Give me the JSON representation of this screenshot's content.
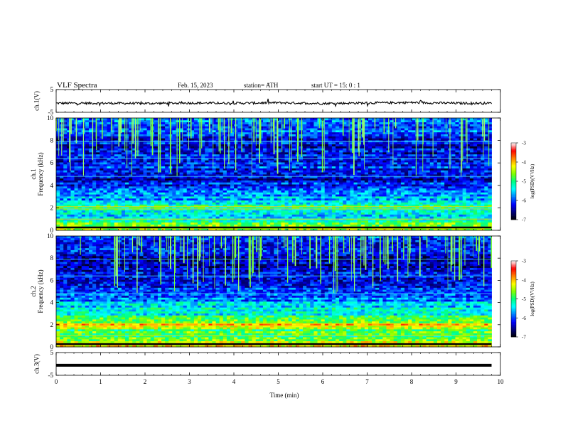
{
  "header": {
    "title": "VLF  Spectra",
    "date": "Feb. 15, 2023",
    "station": "station= ATH",
    "start": "start  UT  =    15: 0   : 1"
  },
  "colorbar": {
    "label": "log(PSD)(V²/Hz)",
    "ticks": [
      "-3",
      "-4",
      "-5",
      "-6",
      "-7"
    ],
    "colors": [
      "#000000",
      "#00007a",
      "#0000ff",
      "#0080ff",
      "#00ffff",
      "#00ff80",
      "#80ff00",
      "#ffff00",
      "#ff8000",
      "#ff0000",
      "#ffffff"
    ]
  },
  "chart_data": [
    {
      "type": "line",
      "ylabel": "ch.1(V)",
      "ylim": [
        -5,
        5
      ],
      "yticks": [
        "5",
        "-5"
      ],
      "xlim": [
        0,
        10
      ],
      "series": [
        {
          "x": [
            0,
            1,
            2,
            3,
            4,
            5,
            6,
            7,
            8,
            9,
            9.8
          ],
          "values": [
            -1,
            -1,
            -1.1,
            -0.9,
            -1,
            -0.8,
            -1.1,
            -0.9,
            -0.7,
            -1,
            -1
          ]
        }
      ]
    },
    {
      "type": "heatmap",
      "ylabel": "ch.1\nFrequency (kHz)",
      "ylim": [
        0,
        10
      ],
      "yticks": [
        "10",
        "8",
        "6",
        "4",
        "2",
        "0"
      ],
      "xlim": [
        0,
        10
      ],
      "data_end_min": 9.8,
      "zlim": [
        -7,
        -3
      ],
      "frequency_profile_khz": [
        0,
        0.5,
        1,
        1.5,
        2,
        2.5,
        3,
        3.5,
        4,
        4.5,
        5,
        6,
        7,
        8,
        9,
        10
      ],
      "log_psd_profile": [
        -4.2,
        -4.6,
        -5.3,
        -5.4,
        -5.0,
        -5.5,
        -5.6,
        -5.8,
        -6.0,
        -6.5,
        -6.2,
        -6.1,
        -6.3,
        -6.2,
        -6.0,
        -5.8
      ]
    },
    {
      "type": "heatmap",
      "ylabel": "ch.2\nFrequency (kHz)",
      "ylim": [
        0,
        10
      ],
      "yticks": [
        "10",
        "8",
        "6",
        "4",
        "2",
        "0"
      ],
      "xlim": [
        0,
        10
      ],
      "data_end_min": 9.8,
      "zlim": [
        -7,
        -3
      ],
      "frequency_profile_khz": [
        0,
        0.5,
        1,
        1.5,
        2,
        2.5,
        3,
        3.5,
        4,
        4.5,
        5,
        6,
        7,
        8,
        9,
        10
      ],
      "log_psd_profile": [
        -4.3,
        -4.4,
        -5.0,
        -4.8,
        -4.1,
        -5.0,
        -5.2,
        -5.3,
        -5.5,
        -6.0,
        -6.0,
        -6.2,
        -6.4,
        -6.3,
        -6.2,
        -6.0
      ]
    },
    {
      "type": "line",
      "ylabel": "ch.3(V)",
      "ylim": [
        -5,
        5
      ],
      "yticks": [
        "5",
        "-5"
      ],
      "xlim": [
        0,
        10
      ],
      "series": [
        {
          "x": [
            0,
            9.8
          ],
          "values": [
            -0.6,
            -0.6
          ]
        }
      ]
    }
  ],
  "xaxis": {
    "label": "Time  (min)",
    "ticks": [
      "0",
      "1",
      "2",
      "3",
      "4",
      "5",
      "6",
      "7",
      "8",
      "9",
      "10"
    ]
  }
}
